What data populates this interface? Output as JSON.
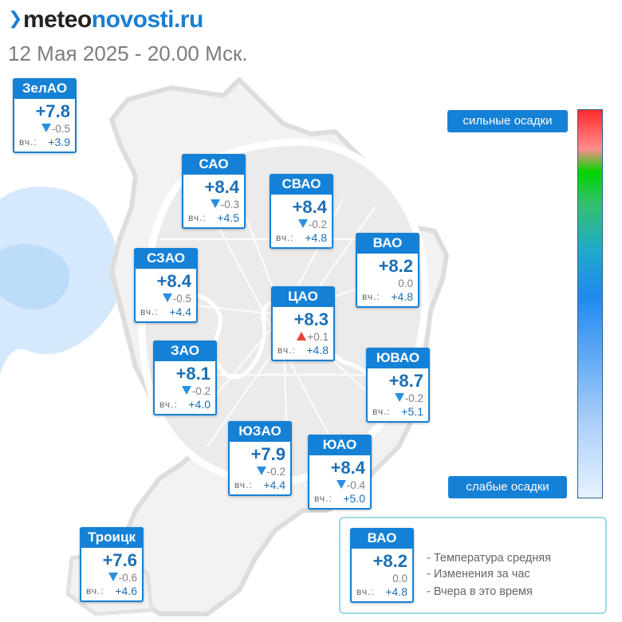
{
  "header": {
    "logo_part1": "meteo",
    "logo_part2": "novosti.ru",
    "subtitle": "12 Мая 2025 - 20.00 Мск."
  },
  "yesterday_label": "вч.:",
  "districts": [
    {
      "id": "zelao",
      "name": "ЗелАО",
      "temp": "+7.8",
      "trend": "down",
      "change": "-0.5",
      "yesterday": "+3.9"
    },
    {
      "id": "sao",
      "name": "САО",
      "temp": "+8.4",
      "trend": "down",
      "change": "-0.3",
      "yesterday": "+4.5"
    },
    {
      "id": "svao",
      "name": "СВАО",
      "temp": "+8.4",
      "trend": "down",
      "change": "-0.2",
      "yesterday": "+4.8"
    },
    {
      "id": "vao",
      "name": "ВАО",
      "temp": "+8.2",
      "trend": "none",
      "change": "0.0",
      "yesterday": "+4.8"
    },
    {
      "id": "szao",
      "name": "СЗАО",
      "temp": "+8.4",
      "trend": "down",
      "change": "-0.5",
      "yesterday": "+4.4"
    },
    {
      "id": "cao",
      "name": "ЦАО",
      "temp": "+8.3",
      "trend": "up",
      "change": "+0.1",
      "yesterday": "+4.8"
    },
    {
      "id": "zao",
      "name": "ЗАО",
      "temp": "+8.1",
      "trend": "down",
      "change": "-0.2",
      "yesterday": "+4.0"
    },
    {
      "id": "yuvao",
      "name": "ЮВАО",
      "temp": "+8.7",
      "trend": "down",
      "change": "-0.2",
      "yesterday": "+5.1"
    },
    {
      "id": "yuzao",
      "name": "ЮЗАО",
      "temp": "+7.9",
      "trend": "down",
      "change": "-0.2",
      "yesterday": "+4.4"
    },
    {
      "id": "yuao",
      "name": "ЮАО",
      "temp": "+8.4",
      "trend": "down",
      "change": "-0.4",
      "yesterday": "+5.0"
    },
    {
      "id": "troitsk",
      "name": "Троицк",
      "temp": "+7.6",
      "trend": "down",
      "change": "-0.6",
      "yesterday": "+4.6"
    }
  ],
  "scale": {
    "top_label": "сильные осадки",
    "bottom_label": "слабые осадки"
  },
  "legend": {
    "sample": {
      "name": "ВАО",
      "temp": "+8.2",
      "trend": "none",
      "change": "0.0",
      "yesterday": "+4.8"
    },
    "line1": "- Температура средняя",
    "line2": "- Изменения за час",
    "line3": "- Вчера в это время"
  },
  "colors": {
    "accent": "#1581d6",
    "precip_light": "#cfe5fb",
    "trend_down": "#2b8fe0",
    "trend_up": "#e8413c"
  }
}
